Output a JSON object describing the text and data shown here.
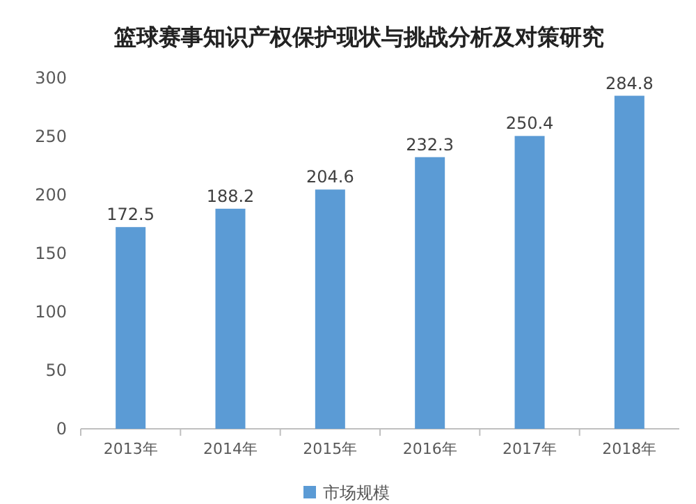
{
  "chart_data": {
    "type": "bar",
    "title": "篮球赛事知识产权保护现状与挑战分析及对策研究",
    "categories": [
      "2013年",
      "2014年",
      "2015年",
      "2016年",
      "2017年",
      "2018年"
    ],
    "series": [
      {
        "name": "市场规模",
        "color": "#5b9bd5",
        "values": [
          172.5,
          188.2,
          204.6,
          232.3,
          250.4,
          284.8
        ]
      }
    ],
    "ylim": [
      0,
      300
    ],
    "yticks": [
      0,
      50,
      100,
      150,
      200,
      250,
      300
    ],
    "data_labels": true,
    "legend": "bottom",
    "grid": false
  }
}
